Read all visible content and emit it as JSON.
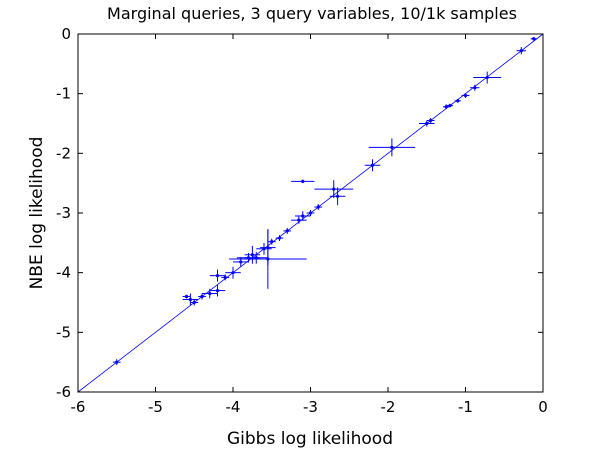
{
  "chart_data": {
    "type": "scatter",
    "title": "Marginal queries, 3 query variables, 10/1k samples",
    "xlabel": "Gibbs log likelihood",
    "ylabel": "NBE log likelihood",
    "xlim": [
      -6,
      0
    ],
    "ylim": [
      -6,
      0
    ],
    "xticks": [
      -6,
      -5,
      -4,
      -3,
      -2,
      -1,
      0
    ],
    "yticks": [
      -6,
      -5,
      -4,
      -3,
      -2,
      -1,
      0
    ],
    "xtick_labels": [
      "-6",
      "-5",
      "-4",
      "-3",
      "-2",
      "-1",
      "0"
    ],
    "ytick_labels": [
      "-6",
      "-5",
      "-4",
      "-3",
      "-2",
      "-1",
      "0"
    ],
    "grid": false,
    "legend": "none",
    "color": "#0000ff",
    "reference_line": {
      "x": [
        -6,
        0
      ],
      "y": [
        -6,
        0
      ]
    },
    "points": [
      {
        "x": -0.12,
        "y": -0.08,
        "xerr": 0.04,
        "yerr": 0.03
      },
      {
        "x": -0.28,
        "y": -0.28,
        "xerr": 0.06,
        "yerr": 0.06
      },
      {
        "x": -0.72,
        "y": -0.73,
        "xerr": 0.18,
        "yerr": 0.1
      },
      {
        "x": -0.88,
        "y": -0.9,
        "xerr": 0.06,
        "yerr": 0.05
      },
      {
        "x": -1.0,
        "y": -1.03,
        "xerr": 0.05,
        "yerr": 0.04
      },
      {
        "x": -1.1,
        "y": -1.12,
        "xerr": 0.04,
        "yerr": 0.03
      },
      {
        "x": -1.2,
        "y": -1.2,
        "xerr": 0.04,
        "yerr": 0.03
      },
      {
        "x": -1.25,
        "y": -1.22,
        "xerr": 0.04,
        "yerr": 0.04
      },
      {
        "x": -1.45,
        "y": -1.45,
        "xerr": 0.05,
        "yerr": 0.04
      },
      {
        "x": -1.5,
        "y": -1.5,
        "xerr": 0.1,
        "yerr": 0.05
      },
      {
        "x": -1.95,
        "y": -1.9,
        "xerr": 0.3,
        "yerr": 0.15
      },
      {
        "x": -2.2,
        "y": -2.2,
        "xerr": 0.1,
        "yerr": 0.1
      },
      {
        "x": -2.7,
        "y": -2.6,
        "xerr": 0.25,
        "yerr": 0.15
      },
      {
        "x": -2.65,
        "y": -2.72,
        "xerr": 0.1,
        "yerr": 0.15
      },
      {
        "x": -3.1,
        "y": -2.47,
        "xerr": 0.15,
        "yerr": 0.03
      },
      {
        "x": -2.9,
        "y": -2.9,
        "xerr": 0.05,
        "yerr": 0.05
      },
      {
        "x": -3.0,
        "y": -3.0,
        "xerr": 0.05,
        "yerr": 0.05
      },
      {
        "x": -3.1,
        "y": -3.05,
        "xerr": 0.1,
        "yerr": 0.08
      },
      {
        "x": -3.15,
        "y": -3.12,
        "xerr": 0.1,
        "yerr": 0.06
      },
      {
        "x": -3.3,
        "y": -3.3,
        "xerr": 0.05,
        "yerr": 0.05
      },
      {
        "x": -3.4,
        "y": -3.42,
        "xerr": 0.05,
        "yerr": 0.05
      },
      {
        "x": -3.5,
        "y": -3.48,
        "xerr": 0.05,
        "yerr": 0.05
      },
      {
        "x": -3.55,
        "y": -3.58,
        "xerr": 0.1,
        "yerr": 0.3
      },
      {
        "x": -3.55,
        "y": -3.77,
        "xerr": 0.5,
        "yerr": 0.5
      },
      {
        "x": -3.6,
        "y": -3.6,
        "xerr": 0.1,
        "yerr": 0.1
      },
      {
        "x": -3.7,
        "y": -3.75,
        "xerr": 0.15,
        "yerr": 0.1
      },
      {
        "x": -3.75,
        "y": -3.7,
        "xerr": 0.1,
        "yerr": 0.15
      },
      {
        "x": -3.8,
        "y": -3.75,
        "xerr": 0.15,
        "yerr": 0.08
      },
      {
        "x": -3.9,
        "y": -3.82,
        "xerr": 0.1,
        "yerr": 0.08
      },
      {
        "x": -4.0,
        "y": -4.0,
        "xerr": 0.1,
        "yerr": 0.1
      },
      {
        "x": -4.1,
        "y": -4.08,
        "xerr": 0.05,
        "yerr": 0.05
      },
      {
        "x": -4.2,
        "y": -4.05,
        "xerr": 0.1,
        "yerr": 0.1
      },
      {
        "x": -4.2,
        "y": -4.3,
        "xerr": 0.1,
        "yerr": 0.1
      },
      {
        "x": -4.3,
        "y": -4.35,
        "xerr": 0.1,
        "yerr": 0.08
      },
      {
        "x": -4.4,
        "y": -4.4,
        "xerr": 0.05,
        "yerr": 0.05
      },
      {
        "x": -4.5,
        "y": -4.5,
        "xerr": 0.05,
        "yerr": 0.05
      },
      {
        "x": -4.55,
        "y": -4.45,
        "xerr": 0.1,
        "yerr": 0.1
      },
      {
        "x": -4.6,
        "y": -4.4,
        "xerr": 0.05,
        "yerr": 0.03
      },
      {
        "x": -5.5,
        "y": -5.5,
        "xerr": 0.05,
        "yerr": 0.05
      }
    ]
  }
}
